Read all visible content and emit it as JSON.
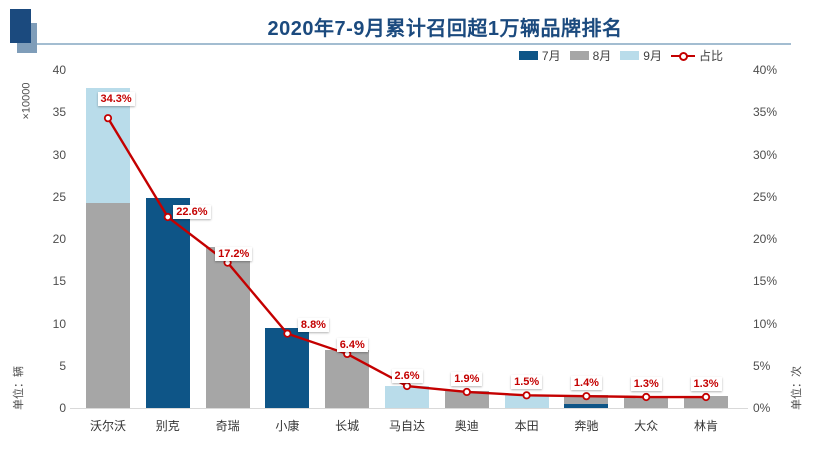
{
  "header": {
    "title": "2020年7-9月累计召回超1万辆品牌排名"
  },
  "colors": {
    "jul": "#0e5587",
    "aug": "#a6a6a6",
    "sep": "#b9dcea",
    "line": "#c40000",
    "title": "#1b4a7e"
  },
  "chart_data": {
    "type": "bar",
    "title": "2020年7-9月累计召回超1万辆品牌排名",
    "categories": [
      "沃尔沃",
      "别克",
      "奇瑞",
      "小康",
      "长城",
      "马自达",
      "奥迪",
      "本田",
      "奔驰",
      "大众",
      "林肯"
    ],
    "unit_multiplier_label": "×10000",
    "left_axis_unit": "单位：辆",
    "right_axis_unit": "单位：次",
    "left_ticks": [
      "0",
      "5",
      "10",
      "15",
      "20",
      "25",
      "30",
      "35",
      "40"
    ],
    "left_tick_values": [
      0,
      5,
      10,
      15,
      20,
      25,
      30,
      35,
      40
    ],
    "right_ticks": [
      "0%",
      "5%",
      "10%",
      "15%",
      "20%",
      "25%",
      "30%",
      "35%",
      "40%"
    ],
    "axis_max": 40,
    "grid": "off",
    "legend_position": "top-right",
    "legend": [
      {
        "label": "7月",
        "color": "#0e5587",
        "type": "bar"
      },
      {
        "label": "8月",
        "color": "#a6a6a6",
        "type": "bar"
      },
      {
        "label": "9月",
        "color": "#b9dcea",
        "type": "bar"
      },
      {
        "label": "占比",
        "color": "#c40000",
        "type": "line"
      }
    ],
    "bars_unit": "万辆 (×10000 vehicles)",
    "bars": [
      {
        "brand": "沃尔沃",
        "segments": [
          {
            "month": "8月",
            "value": 24.3
          },
          {
            "month": "9月",
            "value": 13.6
          }
        ]
      },
      {
        "brand": "别克",
        "segments": [
          {
            "month": "7月",
            "value": 24.9
          }
        ]
      },
      {
        "brand": "奇瑞",
        "segments": [
          {
            "month": "8月",
            "value": 19.0
          }
        ]
      },
      {
        "brand": "小康",
        "segments": [
          {
            "month": "7月",
            "value": 9.5
          }
        ]
      },
      {
        "brand": "长城",
        "segments": [
          {
            "month": "8月",
            "value": 6.9
          }
        ]
      },
      {
        "brand": "马自达",
        "segments": [
          {
            "month": "9月",
            "value": 2.6
          }
        ]
      },
      {
        "brand": "奥迪",
        "segments": [
          {
            "month": "8月",
            "value": 2.0
          }
        ]
      },
      {
        "brand": "本田",
        "segments": [
          {
            "month": "9月",
            "value": 1.5
          }
        ]
      },
      {
        "brand": "奔驰",
        "segments": [
          {
            "month": "7月",
            "value": 0.45
          },
          {
            "month": "8月",
            "value": 1.05
          }
        ]
      },
      {
        "brand": "大众",
        "segments": [
          {
            "month": "8月",
            "value": 1.4
          }
        ]
      },
      {
        "brand": "林肯",
        "segments": [
          {
            "month": "8月",
            "value": 1.4
          }
        ]
      }
    ],
    "line_series": {
      "name": "占比",
      "values_pct": [
        34.3,
        22.6,
        17.2,
        8.8,
        6.4,
        2.6,
        1.9,
        1.5,
        1.4,
        1.3,
        1.3
      ],
      "labels": [
        "34.3%",
        "22.6%",
        "17.2%",
        "8.8%",
        "6.4%",
        "2.6%",
        "1.9%",
        "1.5%",
        "1.4%",
        "1.3%",
        "1.3%"
      ]
    }
  }
}
